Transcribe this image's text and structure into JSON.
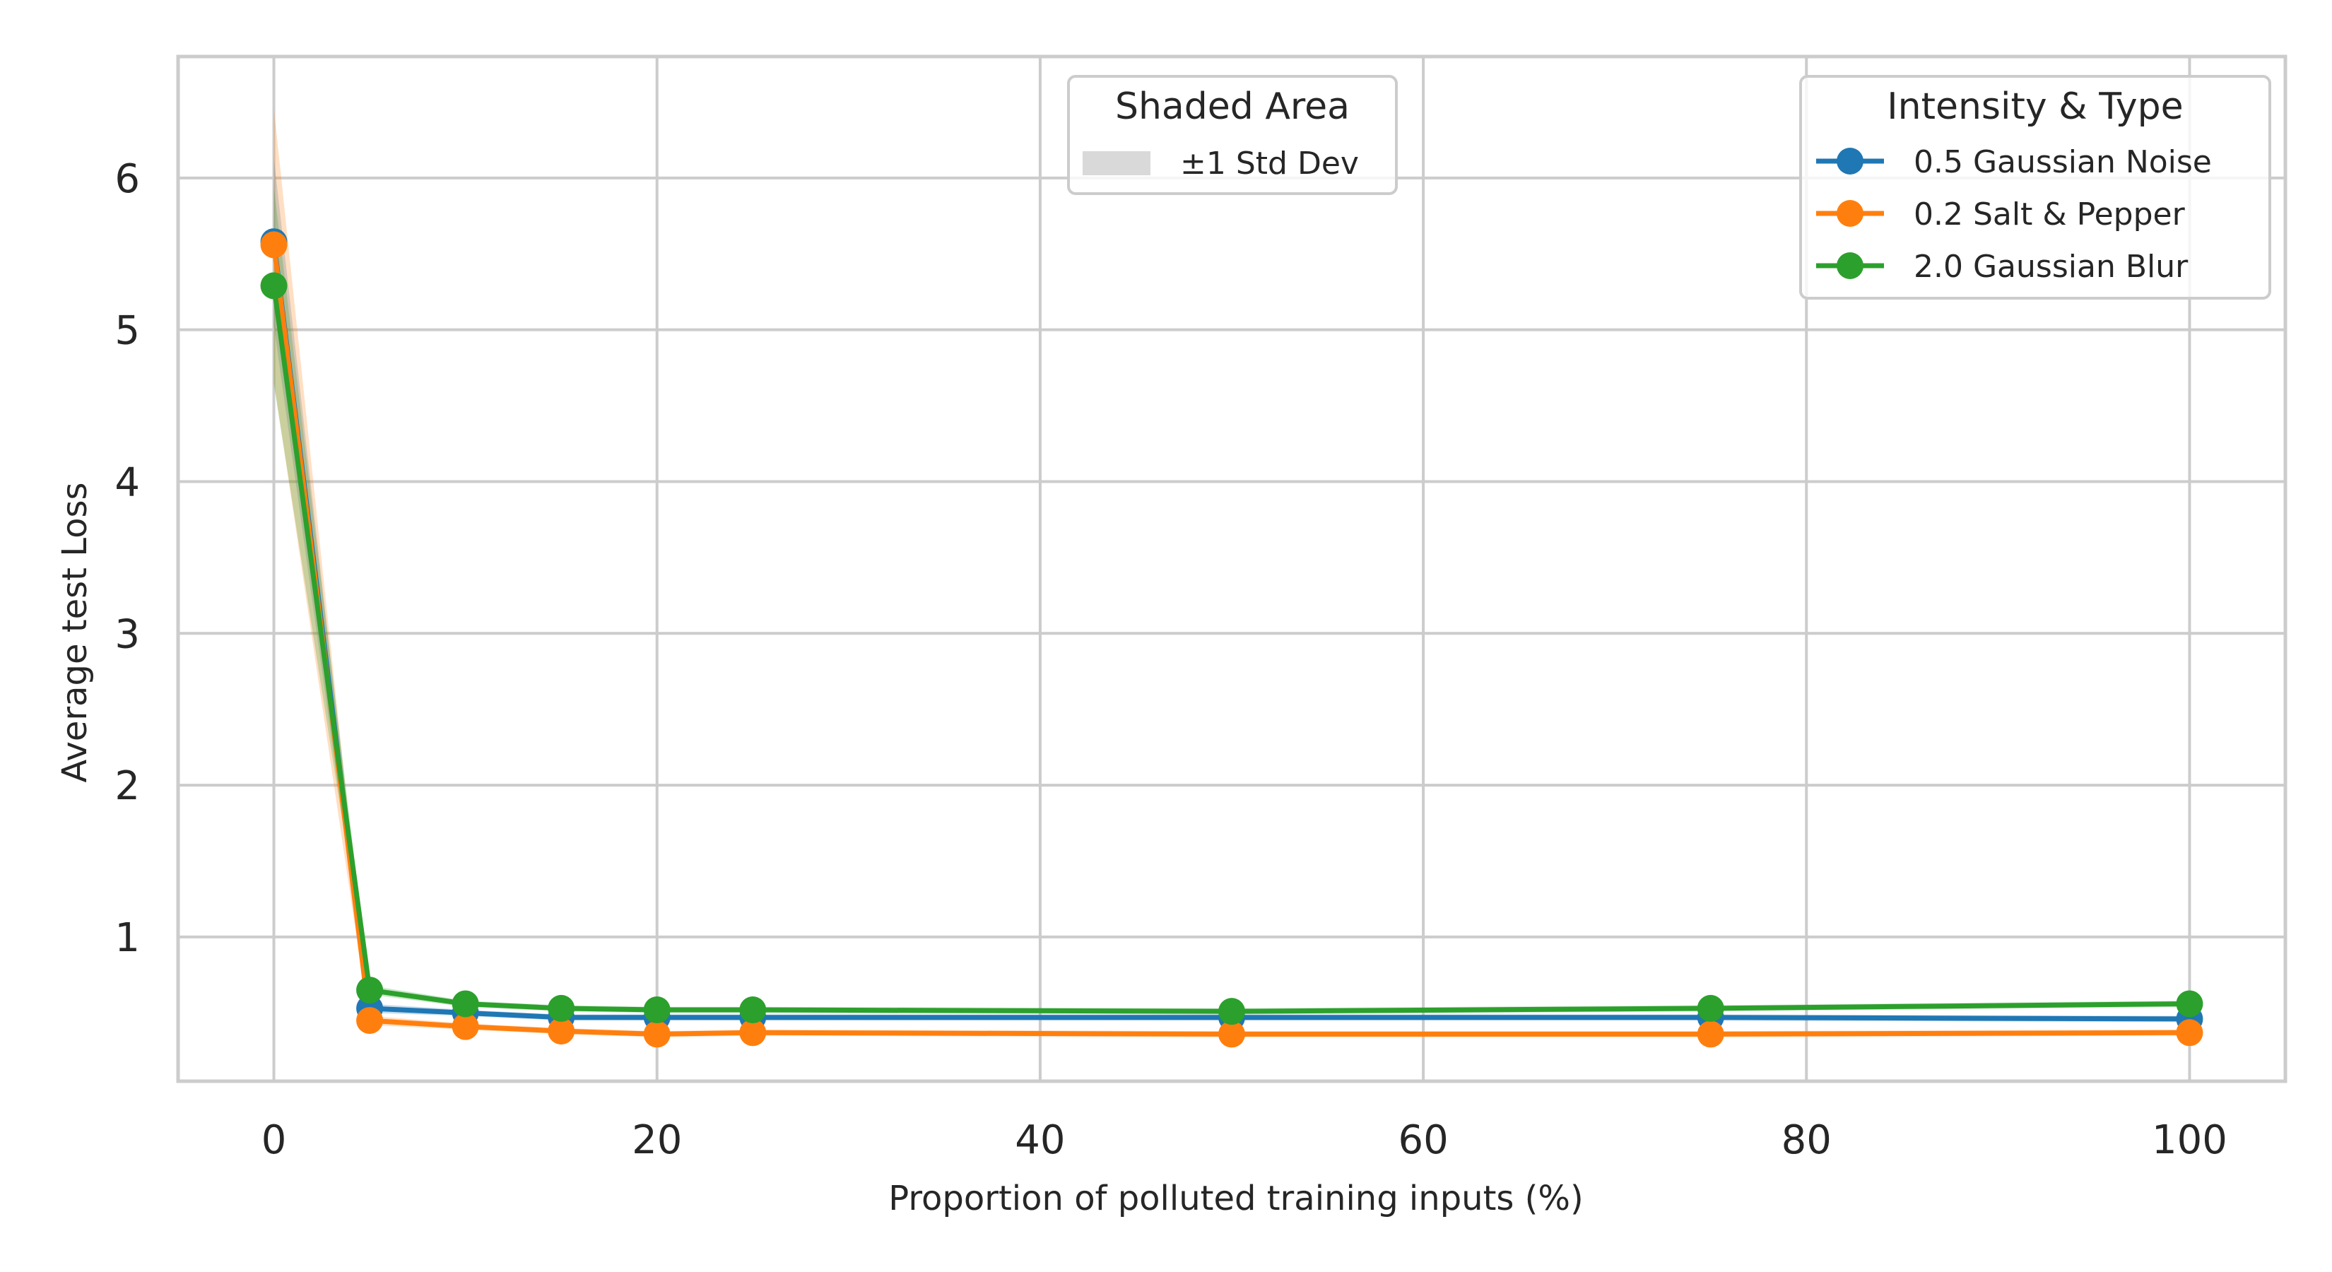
{
  "chart_data": {
    "type": "line",
    "xlabel": "Proportion of polluted training inputs (%)",
    "ylabel": "Average test Loss",
    "xlim": [
      -5,
      105
    ],
    "ylim": [
      0.05,
      6.8
    ],
    "xticks": [
      0,
      20,
      40,
      60,
      80,
      100
    ],
    "yticks": [
      1,
      2,
      3,
      4,
      5,
      6
    ],
    "grid": true,
    "x": [
      0,
      5,
      10,
      15,
      20,
      25,
      50,
      75,
      100
    ],
    "series": [
      {
        "name": "0.5 Gaussian Noise",
        "color": "#1f77b4",
        "values": [
          5.58,
          0.53,
          0.5,
          0.47,
          0.47,
          0.47,
          0.47,
          0.47,
          0.46
        ],
        "std": [
          0.55,
          0.03,
          0.02,
          0.02,
          0.02,
          0.02,
          0.02,
          0.02,
          0.02
        ]
      },
      {
        "name": "0.2 Salt & Pepper",
        "color": "#ff7f0e",
        "values": [
          5.56,
          0.45,
          0.41,
          0.38,
          0.36,
          0.37,
          0.36,
          0.36,
          0.37
        ],
        "std": [
          0.9,
          0.03,
          0.02,
          0.02,
          0.02,
          0.02,
          0.02,
          0.02,
          0.02
        ]
      },
      {
        "name": "2.0 Gaussian Blur",
        "color": "#2ca02c",
        "values": [
          5.29,
          0.65,
          0.56,
          0.53,
          0.52,
          0.52,
          0.51,
          0.53,
          0.56
        ],
        "std": [
          0.65,
          0.03,
          0.02,
          0.02,
          0.02,
          0.02,
          0.02,
          0.02,
          0.02
        ]
      }
    ],
    "legends": {
      "shaded": {
        "title": "Shaded Area",
        "entry": "±1 Std Dev",
        "swatch_color": "#d9d9d9",
        "placement": "top-center"
      },
      "series": {
        "title": "Intensity & Type",
        "placement": "top-right"
      }
    }
  }
}
